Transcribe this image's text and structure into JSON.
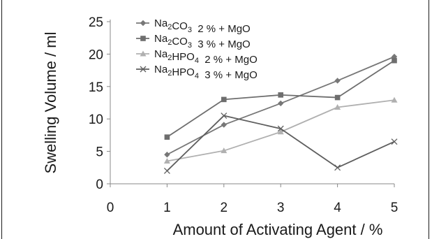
{
  "chart_data": {
    "type": "line",
    "title": "",
    "xlabel": "Amount of Activating Agent / %",
    "ylabel": "Swelling Volume / ml",
    "x_ticks": [
      0,
      1,
      2,
      3,
      4,
      5
    ],
    "y_ticks": [
      0,
      5,
      10,
      15,
      20,
      25
    ],
    "xlim": [
      0,
      5
    ],
    "ylim": [
      0,
      25
    ],
    "grid": false,
    "legend_position": "top-left",
    "series": [
      {
        "name": "Na2CO3 2 % + MgO",
        "legend": {
          "a": "Na",
          "a_sub": "2",
          "b": "CO",
          "b_sub": "3",
          "rest": "  2 % + MgO"
        },
        "marker": "diamond",
        "color": "#777777",
        "x": [
          1,
          2,
          3,
          4,
          5
        ],
        "values": [
          4.5,
          9.1,
          12.4,
          15.9,
          19.6
        ]
      },
      {
        "name": "Na2CO3 3 % + MgO",
        "legend": {
          "a": "Na",
          "a_sub": "2",
          "b": "CO",
          "b_sub": "3",
          "rest": "  3 % + MgO"
        },
        "marker": "square",
        "color": "#6e6e6e",
        "x": [
          1,
          2,
          3,
          4,
          5
        ],
        "values": [
          7.2,
          13.0,
          13.7,
          13.3,
          19.0
        ]
      },
      {
        "name": "Na2HPO4 2 % + MgO",
        "legend": {
          "a": "Na",
          "a_sub": "2",
          "b": "HPO",
          "b_sub": "4",
          "rest": "  2 % + MgO"
        },
        "marker": "triangle",
        "color": "#b0b0b0",
        "x": [
          1,
          2,
          3,
          4,
          5
        ],
        "values": [
          3.5,
          5.1,
          8.0,
          11.8,
          12.9
        ]
      },
      {
        "name": "Na2HPO4 3 % + MgO",
        "legend": {
          "a": "Na",
          "a_sub": "2",
          "b": "HPO",
          "b_sub": "4",
          "rest": "  3 % + MgO"
        },
        "marker": "x",
        "color": "#5e5e5e",
        "x": [
          1,
          2,
          3,
          4,
          5
        ],
        "values": [
          2.0,
          10.5,
          8.5,
          2.5,
          6.5
        ]
      }
    ]
  }
}
